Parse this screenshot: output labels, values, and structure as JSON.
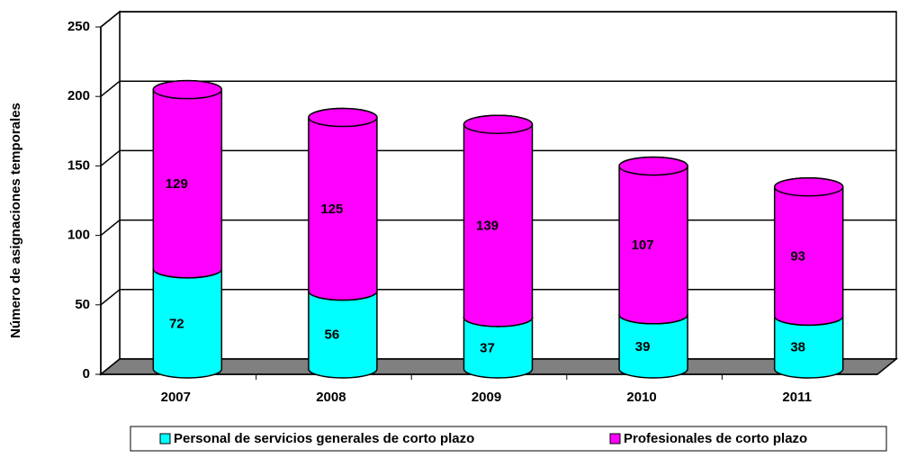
{
  "chart_data": {
    "type": "bar3d_stacked_cylinder",
    "y_label": "Número de asignaciones temporales",
    "categories": [
      "2007",
      "2008",
      "2009",
      "2010",
      "2011"
    ],
    "series": [
      {
        "name": "Personal de servicios generales de corto plazo",
        "color": "#00FFFF",
        "values": [
          72,
          56,
          37,
          39,
          38
        ]
      },
      {
        "name": "Profesionales de corto plazo",
        "color": "#FF00FF",
        "values": [
          129,
          125,
          139,
          107,
          93
        ]
      }
    ],
    "ylim": [
      0,
      250
    ],
    "yticks": [
      0,
      50,
      100,
      150,
      200,
      250
    ],
    "grid": true,
    "legend": "bottom"
  }
}
